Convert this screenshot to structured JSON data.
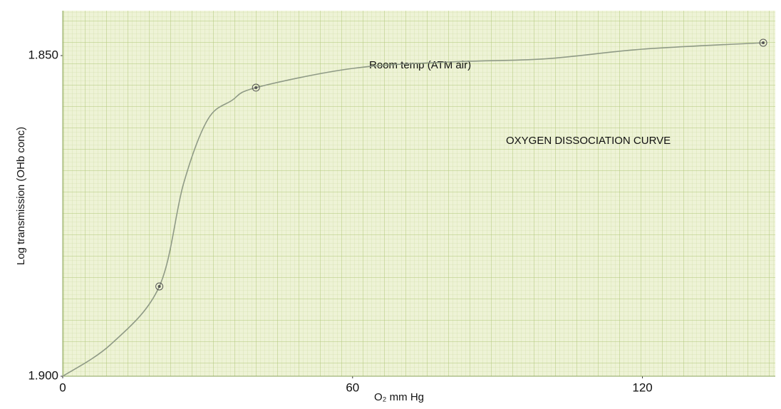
{
  "chart_data": {
    "type": "line",
    "annotations": [
      "Room temp (ATM air)",
      "OXYGEN DISSOCIATION CURVE"
    ],
    "xlabel": "O₂   mm Hg",
    "ylabel": "Log transmission (OHb conc)",
    "xlim": [
      0,
      147.5
    ],
    "ylim": [
      1.9,
      1.843
    ],
    "xticks": [
      0,
      60,
      120
    ],
    "yticks": [
      {
        "value": 1.85,
        "label": "1.850"
      },
      {
        "value": 1.9,
        "label": "1.900"
      }
    ],
    "grid": true,
    "series": [
      {
        "type": "line",
        "color": "#8f9a86",
        "x": [
          0,
          10,
          20,
          25,
          30,
          35,
          40,
          60,
          80,
          100,
          120,
          145
        ],
        "values": [
          1.9,
          1.895,
          1.886,
          1.87,
          1.86,
          1.857,
          1.855,
          1.852,
          1.851,
          1.8505,
          1.849,
          1.848
        ]
      },
      {
        "type": "scatter",
        "color": "#555555",
        "x": [
          20,
          40,
          145
        ],
        "values": [
          1.886,
          1.855,
          1.848
        ]
      }
    ]
  }
}
